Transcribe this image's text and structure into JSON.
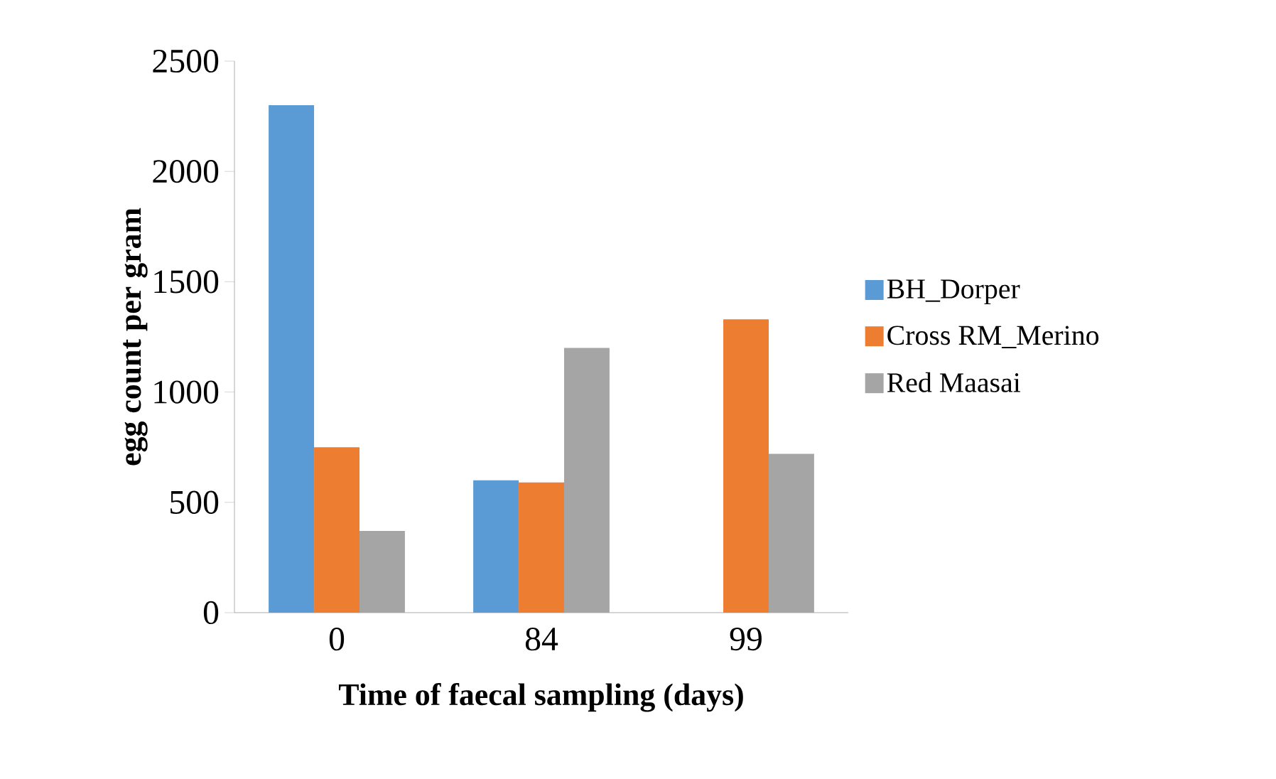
{
  "chart_data": {
    "type": "bar",
    "xlabel": "Time of faecal sampling (days)",
    "ylabel": "egg count per gram",
    "categories": [
      "0",
      "84",
      "99"
    ],
    "series": [
      {
        "name": "BH_Dorper",
        "color": "#5b9bd5",
        "values": [
          2300,
          600,
          null
        ]
      },
      {
        "name": "Cross RM_Merino",
        "color": "#ed7d31",
        "values": [
          750,
          590,
          1330
        ]
      },
      {
        "name": "Red Maasai",
        "color": "#a5a5a5",
        "values": [
          370,
          1200,
          720
        ]
      }
    ],
    "ylim": [
      0,
      2500
    ],
    "yticks": [
      0,
      500,
      1000,
      1500,
      2000,
      2500
    ],
    "legend": "right"
  }
}
